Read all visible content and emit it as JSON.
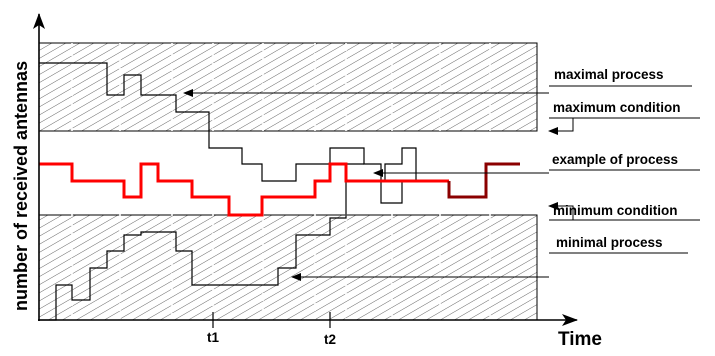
{
  "y_axis_label": "number of received antennas",
  "x_axis_label": "Time",
  "ticks": {
    "t1": "t1",
    "t2": "t2"
  },
  "labels": {
    "maximal_process": "maximal process",
    "maximum_condition": "maximum condition",
    "example_of_process": "example of process",
    "minimum_condition": "minimum condition",
    "minimal_process": "minimal process"
  },
  "colors": {
    "example_process": "#ff0000",
    "example_process_tail": "#8b0000",
    "hatch": "#000000",
    "axes": "#000000"
  }
}
